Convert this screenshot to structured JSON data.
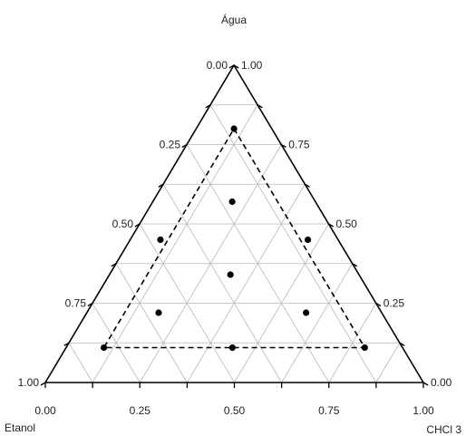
{
  "chart_data": {
    "type": "scatter",
    "subtype": "ternary",
    "axes": {
      "top": "Água",
      "left": "Etanol",
      "right": "CHCl 3"
    },
    "tick_values": [
      0,
      0.25,
      0.5,
      0.75,
      1
    ],
    "tick_labels": [
      "0.00",
      "0.25",
      "0.50",
      "0.75",
      "1.00"
    ],
    "grid": true,
    "grid_step": 0.125,
    "boundary_style": "dashed",
    "points": [
      {
        "agua": 0.8,
        "chcl3": 0.1
      },
      {
        "agua": 0.57,
        "chcl3": 0.21
      },
      {
        "agua": 0.34,
        "chcl3": 0.32
      },
      {
        "agua": 0.11,
        "chcl3": 0.44
      },
      {
        "agua": 0.45,
        "chcl3": 0.08
      },
      {
        "agua": 0.45,
        "chcl3": 0.47
      },
      {
        "agua": 0.22,
        "chcl3": 0.19
      },
      {
        "agua": 0.22,
        "chcl3": 0.58
      },
      {
        "agua": 0.11,
        "chcl3": 0.1
      },
      {
        "agua": 0.11,
        "chcl3": 0.79
      }
    ],
    "boundary": [
      {
        "agua": 0.8,
        "chcl3": 0.1
      },
      {
        "agua": 0.11,
        "chcl3": 0.79
      },
      {
        "agua": 0.11,
        "chcl3": 0.1
      }
    ]
  }
}
